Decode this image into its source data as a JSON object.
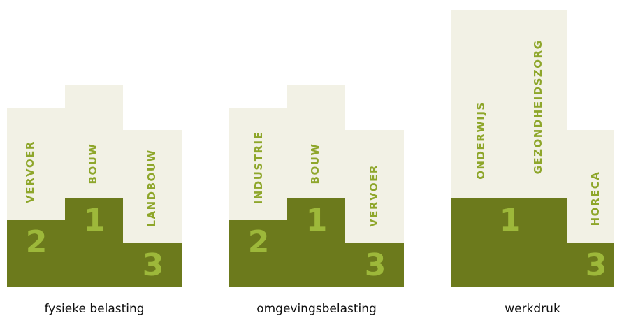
{
  "colors": {
    "cream": "#f2f1e5",
    "olive": "#6c7a1c",
    "label_green": "#8ea62a",
    "rank_green": "#9db83a"
  },
  "podiums": [
    {
      "caption": "fysieke belasting",
      "first": {
        "rank": "1",
        "label": "BOUW"
      },
      "second": {
        "rank": "2",
        "label": "VERVOER"
      },
      "third": {
        "rank": "3",
        "label": "LANDBOUW"
      }
    },
    {
      "caption": "omgevingsbelasting",
      "first": {
        "rank": "1",
        "label": "BOUW"
      },
      "second": {
        "rank": "2",
        "label": "INDUSTRIE"
      },
      "third": {
        "rank": "3",
        "label": "VERVOER"
      }
    },
    {
      "caption": "werkdruk",
      "first": {
        "rank": "1",
        "label_a": "ONDERWIJS",
        "label_b": "GEZONDHEIDSZORG"
      },
      "third": {
        "rank": "3",
        "label": "HORECA"
      }
    }
  ]
}
